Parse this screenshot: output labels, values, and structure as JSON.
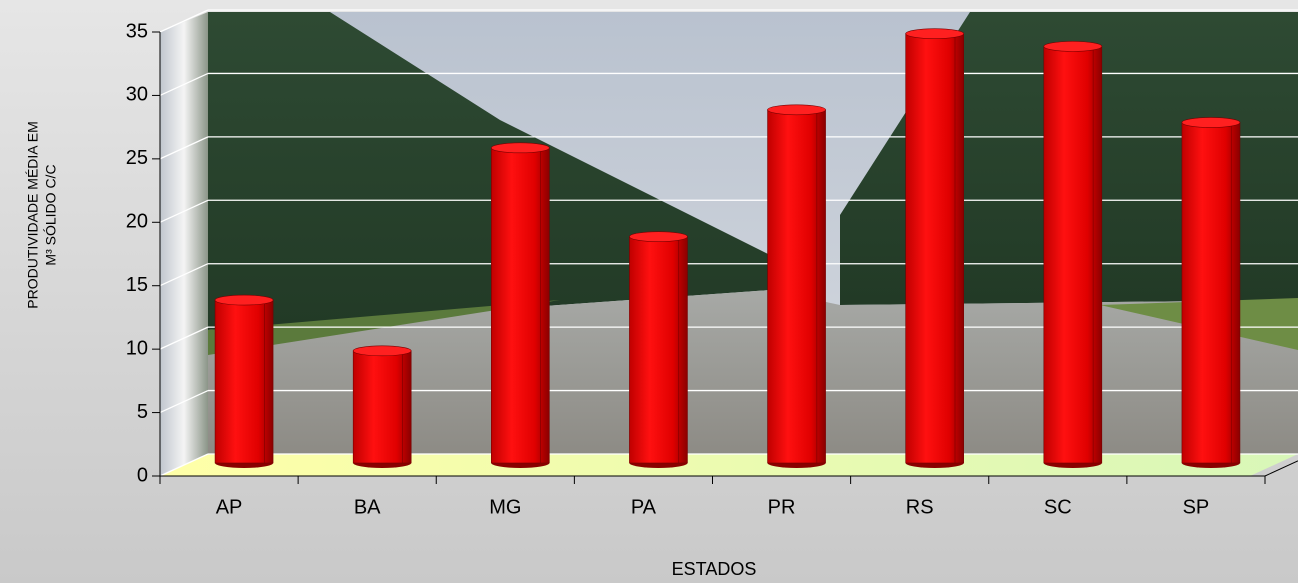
{
  "chart_data": {
    "type": "bar",
    "style": "3d-cylinder",
    "categories": [
      "AP",
      "BA",
      "MG",
      "PA",
      "PR",
      "RS",
      "SC",
      "SP"
    ],
    "values": [
      13,
      9,
      25,
      18,
      28,
      34,
      33,
      27
    ],
    "color": "#e00000",
    "ylim": [
      0,
      35
    ],
    "yticks": [
      0,
      5,
      10,
      15,
      20,
      25,
      30,
      35
    ],
    "grid": true,
    "x_label": "ESTADOS",
    "y_label": [
      "PRODUTIVIDADE MÉDIA EM",
      "M³ SÓLIDO C/C"
    ]
  }
}
